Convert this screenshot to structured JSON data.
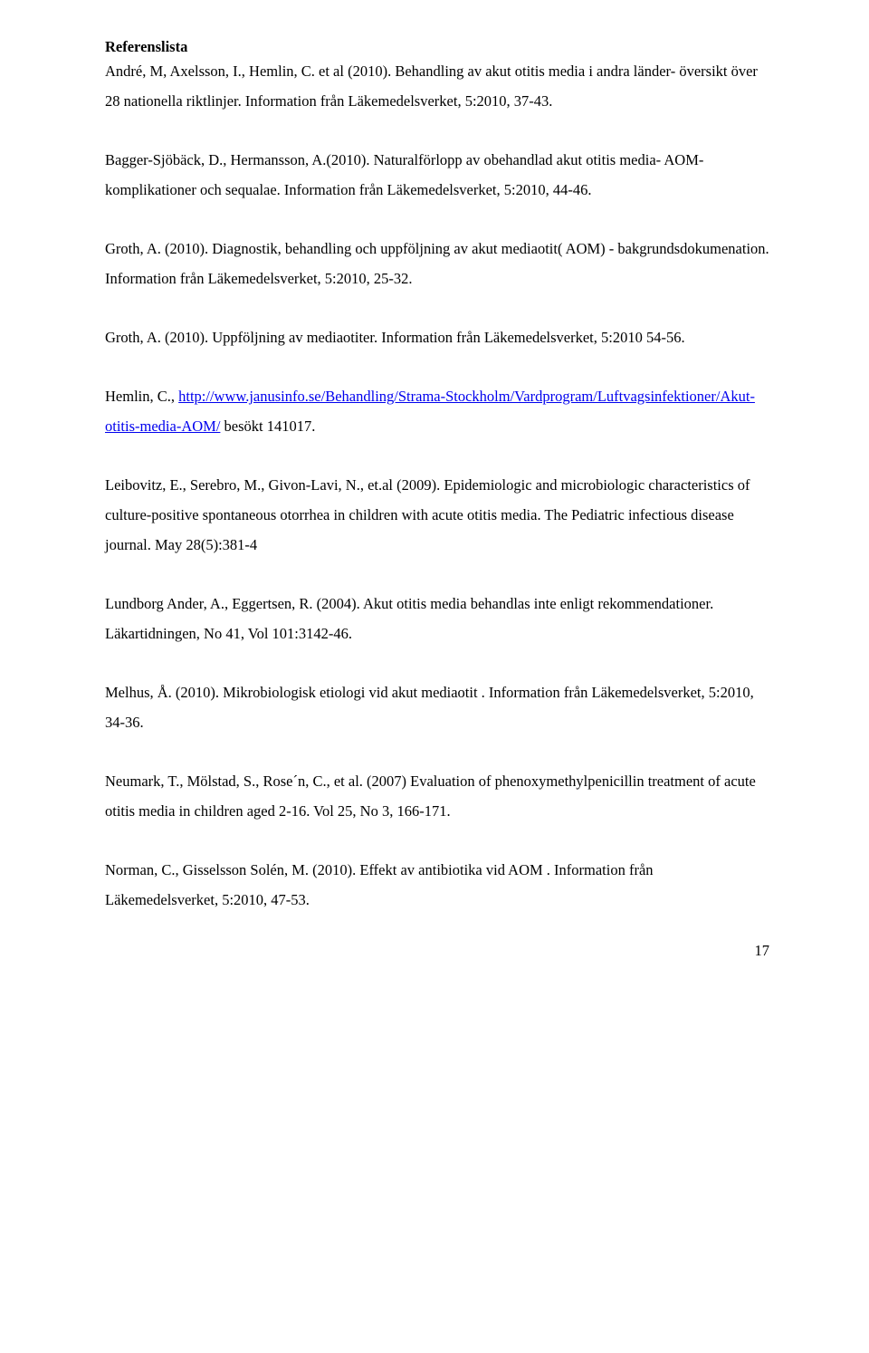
{
  "heading": "Referenslista",
  "refs": [
    "André, M, Axelsson, I., Hemlin, C. et al (2010). Behandling av akut otitis media i andra länder- översikt över 28 nationella riktlinjer. Information från Läkemedelsverket, 5:2010, 37-43.",
    "Bagger-Sjöbäck, D., Hermansson, A.(2010). Naturalförlopp av obehandlad akut otitis media- AOM- komplikationer och sequalae. Information från Läkemedelsverket, 5:2010, 44-46.",
    "Groth, A. (2010). Diagnostik, behandling och uppföljning av akut mediaotit( AOM) - bakgrundsdokumenation. Information från Läkemedelsverket, 5:2010, 25-32.",
    "Groth, A. (2010). Uppföljning av mediaotiter. Information från Läkemedelsverket, 5:2010 54-56."
  ],
  "ref_link": {
    "prefix": "Hemlin, C., ",
    "link1_text": "http://www.janusinfo.se/Behandling/Strama-Stockholm/Vardprogram/Luftvagsinfektioner/Akut-otitis-media-AOM/",
    "suffix": " besökt  141017."
  },
  "refs2": [
    "Leibovitz, E., Serebro, M., Givon-Lavi, N., et.al (2009). Epidemiologic and microbiologic characteristics of culture-positive spontaneous otorrhea in children with acute otitis media. The Pediatric infectious disease journal. May 28(5):381-4",
    "Lundborg Ander, A., Eggertsen, R. (2004). Akut otitis media behandlas inte enligt rekommendationer. Läkartidningen, No 41, Vol 101:3142-46.",
    "Melhus, Å. (2010). Mikrobiologisk etiologi vid akut mediaotit . Information från Läkemedelsverket, 5:2010, 34-36.",
    "Neumark, T., Mölstad, S., Rose´n, C., et al. (2007) Evaluation of phenoxymethylpenicillin treatment of acute otitis media in children aged 2-16. Vol 25, No 3, 166-171.",
    "Norman, C., Gisselsson Solén, M. (2010). Effekt av antibiotika vid AOM . Information från Läkemedelsverket, 5:2010, 47-53."
  ],
  "page_number": "17"
}
